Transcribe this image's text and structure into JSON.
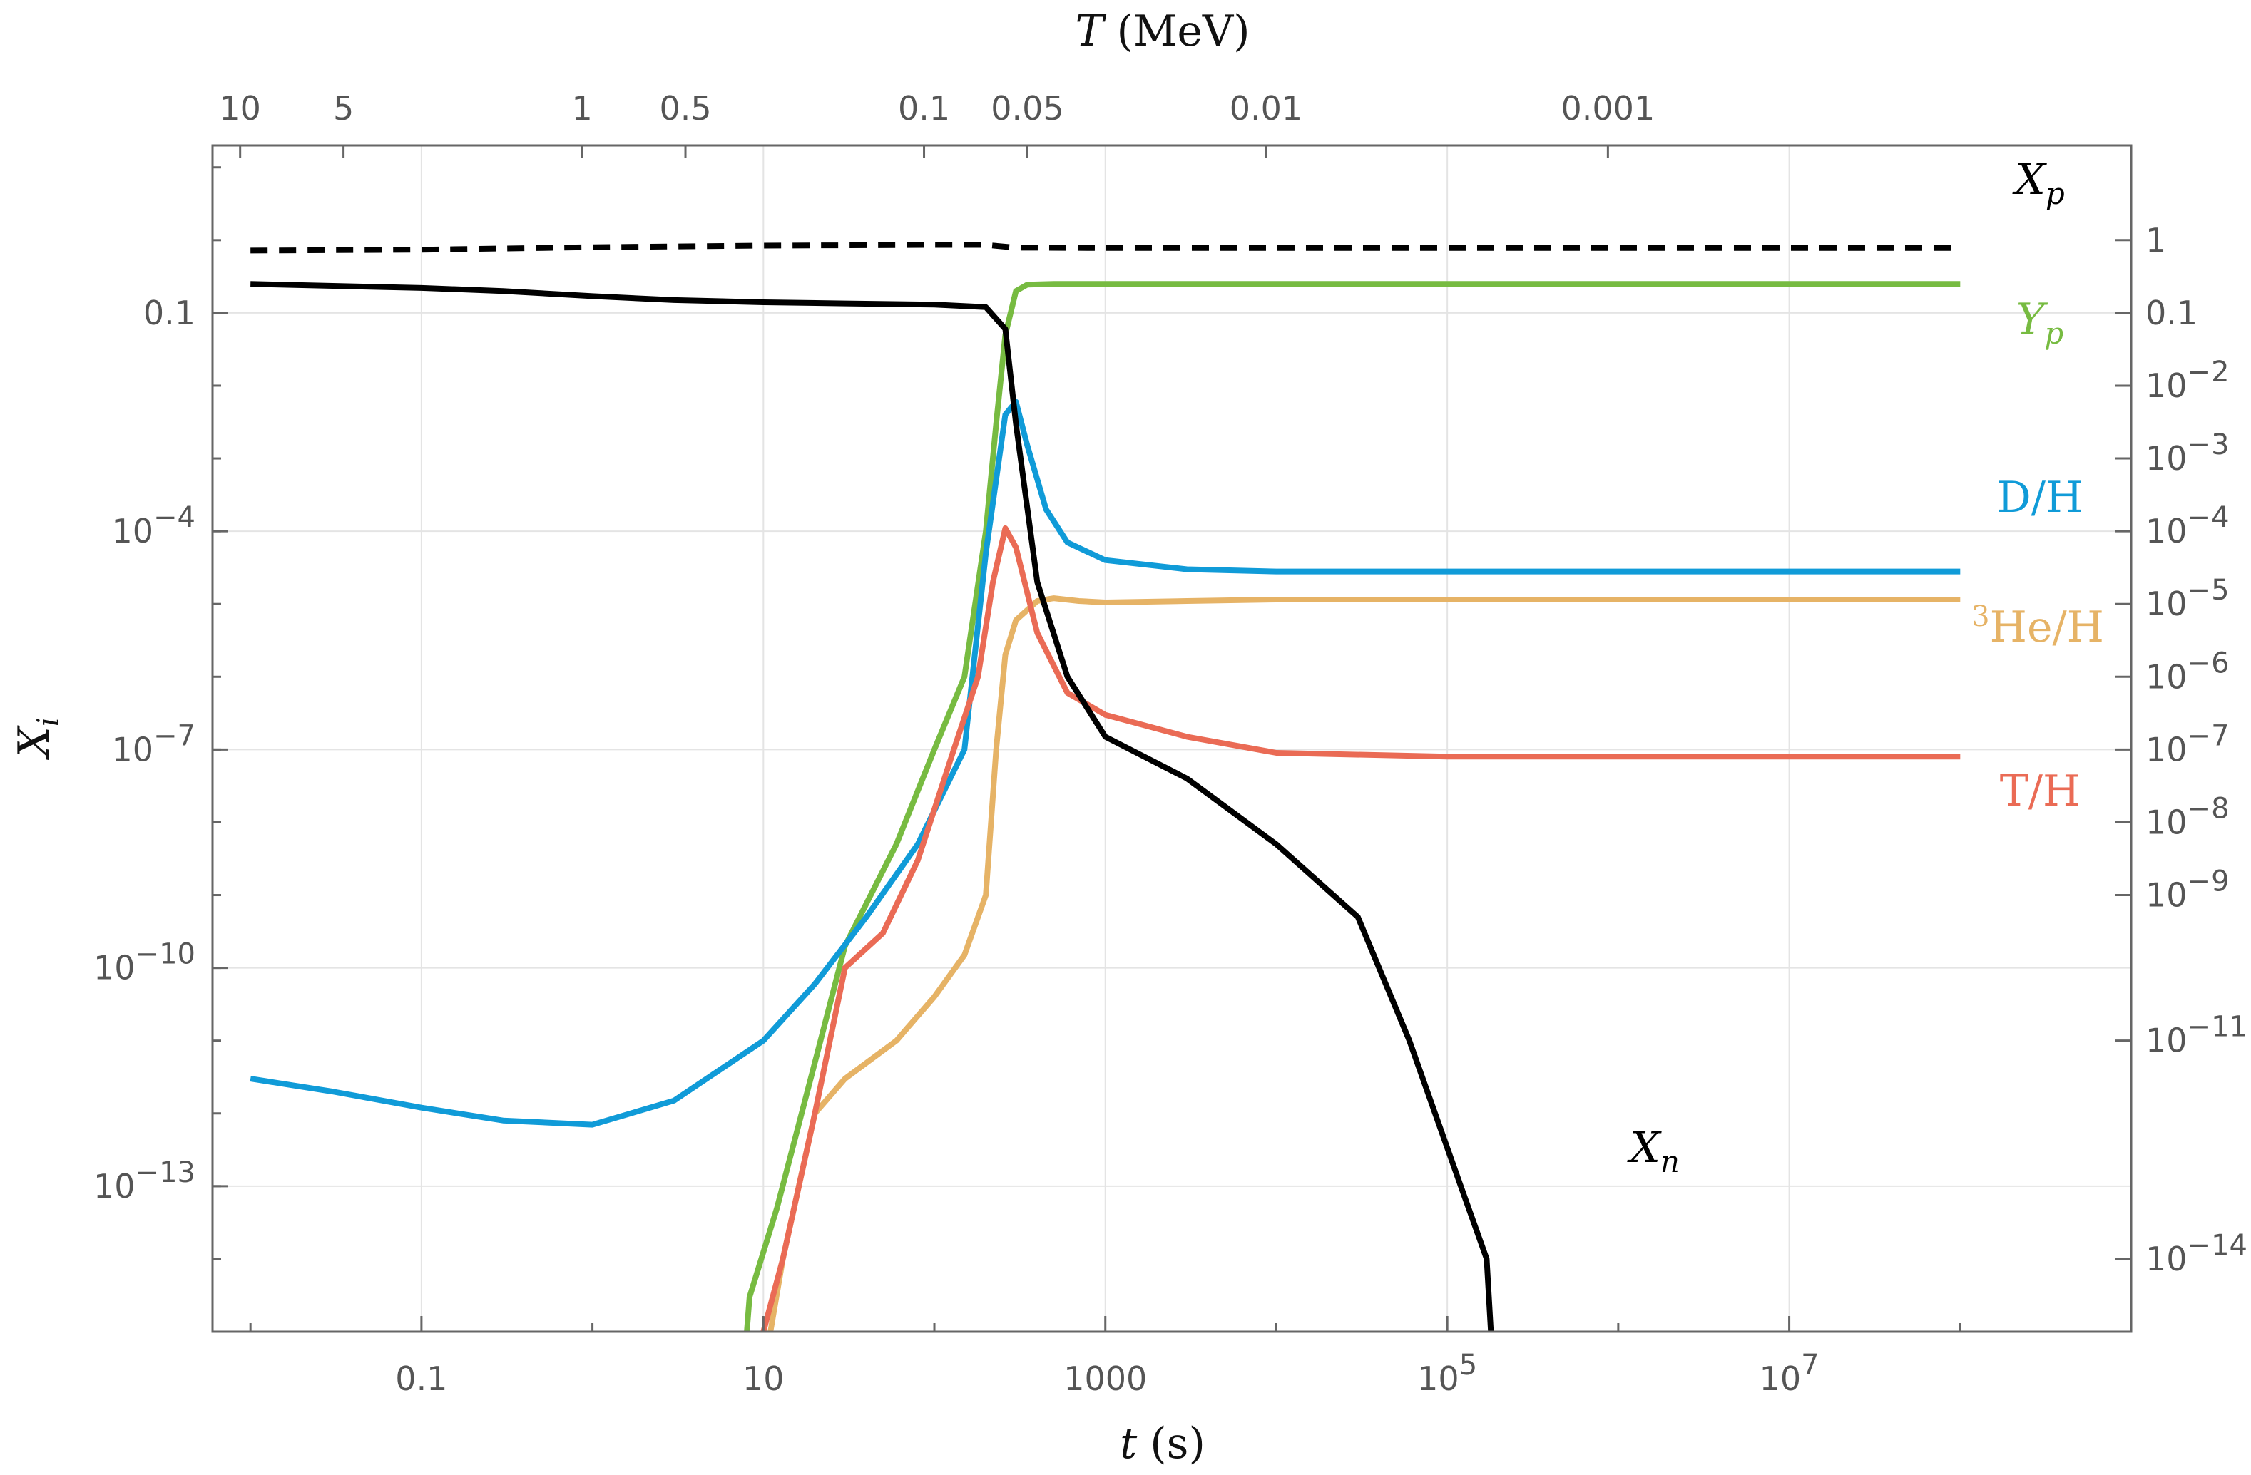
{
  "chart_data": {
    "type": "line",
    "title": "",
    "xlabel": {
      "var": "t",
      "unit": "(s)"
    },
    "x2label": {
      "var": "T",
      "unit": "(MeV)"
    },
    "ylabel": {
      "var": "X",
      "sub": "i"
    },
    "x_scale": "log",
    "y_scale": "log",
    "xlim": [
      0.006,
      1000000000.0
    ],
    "ylim": [
      1e-15,
      20
    ],
    "grid": true,
    "x_ticks": [
      {
        "value": 0.1,
        "label": "0.1"
      },
      {
        "value": 10,
        "label": "10"
      },
      {
        "value": 1000,
        "label": "1000"
      },
      {
        "value": 100000,
        "label": "10",
        "exp": "5"
      },
      {
        "value": 10000000,
        "label": "10",
        "exp": "7"
      }
    ],
    "x2_ticks": [
      {
        "t": 0.0087,
        "label": "10"
      },
      {
        "t": 0.035,
        "label": "5"
      },
      {
        "t": 0.87,
        "label": "1"
      },
      {
        "t": 3.5,
        "label": "0.5"
      },
      {
        "t": 87,
        "label": "0.1"
      },
      {
        "t": 350,
        "label": "0.05"
      },
      {
        "t": 8700,
        "label": "0.01"
      },
      {
        "t": 870000,
        "label": "0.001"
      }
    ],
    "y_ticks": [
      {
        "value": 0.1,
        "label": "0.1"
      },
      {
        "value": 0.0001,
        "label": "10",
        "exp": "−4"
      },
      {
        "value": 1e-07,
        "label": "10",
        "exp": "−7"
      },
      {
        "value": 1e-10,
        "label": "10",
        "exp": "−10"
      },
      {
        "value": 1e-13,
        "label": "10",
        "exp": "−13"
      }
    ],
    "y2_ticks": [
      {
        "value": 1,
        "label": "1"
      },
      {
        "value": 0.1,
        "label": "0.1"
      },
      {
        "value": 0.01,
        "label": "10",
        "exp": "−2"
      },
      {
        "value": 0.001,
        "label": "10",
        "exp": "−3"
      },
      {
        "value": 0.0001,
        "label": "10",
        "exp": "−4"
      },
      {
        "value": 1e-05,
        "label": "10",
        "exp": "−5"
      },
      {
        "value": 1e-06,
        "label": "10",
        "exp": "−6"
      },
      {
        "value": 1e-07,
        "label": "10",
        "exp": "−7"
      },
      {
        "value": 1e-08,
        "label": "10",
        "exp": "−8"
      },
      {
        "value": 1e-09,
        "label": "10",
        "exp": "−9"
      },
      {
        "value": 1e-11,
        "label": "10",
        "exp": "−11"
      },
      {
        "value": 1e-14,
        "label": "10",
        "exp": "−14"
      }
    ],
    "series": [
      {
        "name": "X_p",
        "label": {
          "main": "X",
          "sub": "p"
        },
        "color": "#000000",
        "dash": true,
        "points": [
          [
            0.01,
            0.72
          ],
          [
            0.1,
            0.74
          ],
          [
            1,
            0.8
          ],
          [
            10,
            0.84
          ],
          [
            100,
            0.86
          ],
          [
            200,
            0.86
          ],
          [
            300,
            0.79
          ],
          [
            1000,
            0.78
          ],
          [
            100000.0,
            0.78
          ],
          [
            100000000.0,
            0.78
          ]
        ]
      },
      {
        "name": "Y_p",
        "label": {
          "main": "Y",
          "sub": "p"
        },
        "color": "#77bb41",
        "points": [
          [
            8,
            1e-15
          ],
          [
            8.3,
            3e-15
          ],
          [
            12,
            5e-14
          ],
          [
            20,
            5e-12
          ],
          [
            30,
            2e-10
          ],
          [
            60,
            5e-09
          ],
          [
            100,
            1e-07
          ],
          [
            150,
            1e-06
          ],
          [
            200,
            0.0001
          ],
          [
            230,
            0.003
          ],
          [
            260,
            0.05
          ],
          [
            300,
            0.2
          ],
          [
            350,
            0.245
          ],
          [
            500,
            0.25
          ],
          [
            100000000.0,
            0.25
          ]
        ]
      },
      {
        "name": "D/H",
        "label": {
          "main": "D/H"
        },
        "color": "#109bd8",
        "points": [
          [
            0.01,
            3e-12
          ],
          [
            0.03,
            2e-12
          ],
          [
            0.1,
            1.2e-12
          ],
          [
            0.3,
            8e-13
          ],
          [
            1,
            7e-13
          ],
          [
            3,
            1.5e-12
          ],
          [
            10,
            1e-11
          ],
          [
            20,
            6e-11
          ],
          [
            40,
            5e-10
          ],
          [
            80,
            5e-09
          ],
          [
            150,
            1e-07
          ],
          [
            200,
            5e-05
          ],
          [
            260,
            0.004
          ],
          [
            300,
            0.006
          ],
          [
            350,
            0.0015
          ],
          [
            450,
            0.0002
          ],
          [
            600,
            7e-05
          ],
          [
            1000,
            4e-05
          ],
          [
            3000,
            3e-05
          ],
          [
            10000.0,
            2.8e-05
          ],
          [
            100000000.0,
            2.8e-05
          ]
        ]
      },
      {
        "name": "3He/H",
        "label": {
          "pre": "3",
          "main": "He/H"
        },
        "color": "#e6b366",
        "points": [
          [
            11,
            1e-15
          ],
          [
            13,
            1e-14
          ],
          [
            20,
            1e-12
          ],
          [
            30,
            3e-12
          ],
          [
            60,
            1e-11
          ],
          [
            100,
            4e-11
          ],
          [
            150,
            1.5e-10
          ],
          [
            200,
            1e-09
          ],
          [
            230,
            1e-07
          ],
          [
            260,
            2e-06
          ],
          [
            300,
            6e-06
          ],
          [
            400,
            1.1e-05
          ],
          [
            500,
            1.2e-05
          ],
          [
            700,
            1.1e-05
          ],
          [
            1000,
            1.05e-05
          ],
          [
            3000,
            1.1e-05
          ],
          [
            10000.0,
            1.15e-05
          ],
          [
            100000000.0,
            1.15e-05
          ]
        ]
      },
      {
        "name": "T/H",
        "label": {
          "main": "T/H"
        },
        "color": "#ea6b55",
        "points": [
          [
            10,
            1e-15
          ],
          [
            13,
            1e-14
          ],
          [
            20,
            1e-12
          ],
          [
            30,
            1e-10
          ],
          [
            50,
            3e-10
          ],
          [
            80,
            3e-09
          ],
          [
            130,
            1e-07
          ],
          [
            180,
            1e-06
          ],
          [
            220,
            2e-05
          ],
          [
            260,
            0.00011
          ],
          [
            300,
            6e-05
          ],
          [
            400,
            4e-06
          ],
          [
            600,
            6e-07
          ],
          [
            1000,
            3e-07
          ],
          [
            3000,
            1.5e-07
          ],
          [
            10000.0,
            9e-08
          ],
          [
            100000.0,
            8e-08
          ],
          [
            100000000.0,
            8e-08
          ]
        ]
      },
      {
        "name": "X_n",
        "label": {
          "main": "X",
          "sub": "n"
        },
        "color": "#000000",
        "points": [
          [
            0.01,
            0.25
          ],
          [
            0.1,
            0.22
          ],
          [
            0.3,
            0.2
          ],
          [
            1,
            0.17
          ],
          [
            3,
            0.15
          ],
          [
            10,
            0.14
          ],
          [
            30,
            0.135
          ],
          [
            100,
            0.13
          ],
          [
            200,
            0.12
          ],
          [
            260,
            0.06
          ],
          [
            300,
            0.003
          ],
          [
            400,
            2e-05
          ],
          [
            600,
            1e-06
          ],
          [
            1000,
            1.5e-07
          ],
          [
            3000,
            4e-08
          ],
          [
            10000.0,
            5e-09
          ],
          [
            30000.0,
            5e-10
          ],
          [
            60000.0,
            1e-11
          ],
          [
            120000.0,
            1e-13
          ],
          [
            170000.0,
            1e-14
          ],
          [
            180000.0,
            1e-15
          ]
        ]
      }
    ]
  }
}
